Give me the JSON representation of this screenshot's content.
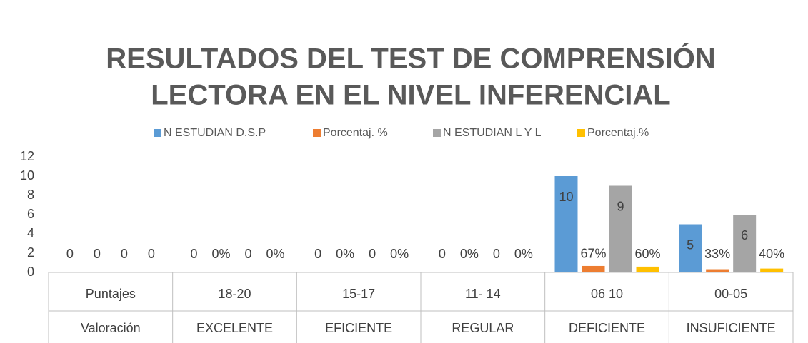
{
  "chart_data": {
    "type": "bar",
    "title": [
      "RESULTADOS DEL TEST  DE COMPRENSIÓN",
      "LECTORA  EN EL  NIVEL INFERENCIAL"
    ],
    "categories": [
      "Puntajes",
      "18-20",
      "15-17",
      "11- 14",
      "06  10",
      "00-05"
    ],
    "subcategories": [
      "Valoración",
      "EXCELENTE",
      "EFICIENTE",
      "REGULAR",
      "DEFICIENTE",
      "INSUFICIENTE"
    ],
    "series": [
      {
        "name": "N ESTUDIAN D.S.P",
        "color": "#5b9bd5",
        "values": [
          0,
          0,
          0,
          0,
          10,
          5
        ]
      },
      {
        "name": "Porcentaj. %",
        "color": "#ed7d31",
        "values": [
          0,
          0,
          0,
          0,
          0.67,
          0.33
        ],
        "value_labels": [
          "0",
          "0%",
          "0%",
          "0%",
          "67%",
          "33%"
        ]
      },
      {
        "name": "N ESTUDIAN L Y L",
        "color": "#a5a5a5",
        "values": [
          0,
          0,
          0,
          0,
          9,
          6
        ]
      },
      {
        "name": "Porcentaj.%",
        "color": "#ffc000",
        "values": [
          0,
          0,
          0,
          0,
          0.6,
          0.4
        ],
        "value_labels": [
          "0",
          "0%",
          "0%",
          "0%",
          "60%",
          "40%"
        ]
      }
    ],
    "ylim": [
      0,
      12
    ],
    "yticks": [
      0,
      2,
      4,
      6,
      8,
      10,
      12
    ],
    "grid": false,
    "legend": "top"
  }
}
